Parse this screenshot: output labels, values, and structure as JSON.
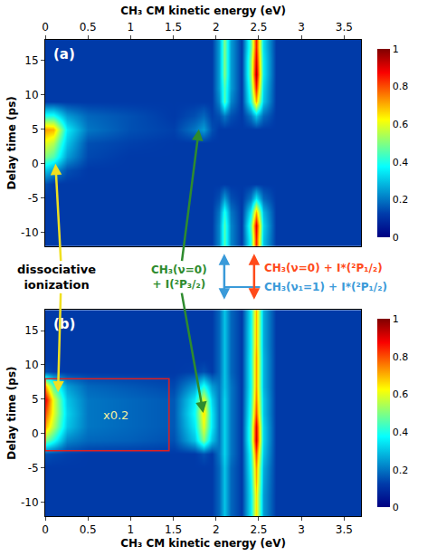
{
  "chart_data": [
    {
      "type": "heatmap",
      "panel": "(a)",
      "xlabel": "CH₃ CM kinetic energy (eV)",
      "ylabel": "Delay time (ps)",
      "xlim": [
        0,
        3.7
      ],
      "xticks": [
        0,
        0.5,
        1,
        1.5,
        2,
        2.5,
        3,
        3.5
      ],
      "ylim": [
        -12,
        18
      ],
      "yticks": [
        -10,
        -5,
        0,
        5,
        10,
        15
      ],
      "colorbar": {
        "range": [
          0,
          1
        ],
        "ticks": [
          0,
          0.2,
          0.4,
          0.6,
          0.8,
          1
        ]
      },
      "x": [
        0,
        0.1,
        0.25,
        0.5,
        1.0,
        1.5,
        1.75,
        1.85,
        1.95,
        2.03,
        2.1,
        2.17,
        2.3,
        2.4,
        2.47,
        2.55,
        2.7,
        3.0,
        3.6
      ],
      "y": [
        -11,
        -9,
        -7,
        -5,
        -3,
        -1,
        1,
        3,
        5,
        7,
        9,
        11,
        13,
        15,
        17
      ],
      "z": [
        [
          0.12,
          0.12,
          0.12,
          0.12,
          0.12,
          0.12,
          0.12,
          0.12,
          0.12,
          0.22,
          0.45,
          0.22,
          0.12,
          0.4,
          0.85,
          0.3,
          0.12,
          0.12,
          0.12
        ],
        [
          0.12,
          0.12,
          0.12,
          0.12,
          0.12,
          0.12,
          0.12,
          0.12,
          0.12,
          0.22,
          0.45,
          0.22,
          0.12,
          0.45,
          0.9,
          0.32,
          0.12,
          0.12,
          0.12
        ],
        [
          0.12,
          0.12,
          0.12,
          0.12,
          0.12,
          0.12,
          0.12,
          0.12,
          0.12,
          0.2,
          0.4,
          0.2,
          0.12,
          0.35,
          0.7,
          0.28,
          0.12,
          0.12,
          0.12
        ],
        [
          0.12,
          0.12,
          0.12,
          0.12,
          0.12,
          0.12,
          0.12,
          0.12,
          0.12,
          0.15,
          0.25,
          0.15,
          0.12,
          0.2,
          0.35,
          0.18,
          0.12,
          0.12,
          0.12
        ],
        [
          0.15,
          0.12,
          0.12,
          0.12,
          0.12,
          0.12,
          0.12,
          0.12,
          0.12,
          0.12,
          0.12,
          0.12,
          0.12,
          0.12,
          0.12,
          0.12,
          0.12,
          0.12,
          0.12
        ],
        [
          0.3,
          0.25,
          0.15,
          0.12,
          0.12,
          0.12,
          0.12,
          0.12,
          0.12,
          0.12,
          0.12,
          0.12,
          0.12,
          0.12,
          0.12,
          0.12,
          0.12,
          0.12,
          0.12
        ],
        [
          0.5,
          0.45,
          0.25,
          0.14,
          0.12,
          0.12,
          0.12,
          0.12,
          0.12,
          0.12,
          0.12,
          0.12,
          0.12,
          0.12,
          0.12,
          0.12,
          0.12,
          0.12,
          0.12
        ],
        [
          0.6,
          0.55,
          0.3,
          0.15,
          0.13,
          0.12,
          0.12,
          0.12,
          0.12,
          0.12,
          0.12,
          0.12,
          0.12,
          0.12,
          0.12,
          0.12,
          0.12,
          0.12,
          0.12
        ],
        [
          0.72,
          0.7,
          0.35,
          0.2,
          0.15,
          0.13,
          0.2,
          0.25,
          0.15,
          0.12,
          0.12,
          0.12,
          0.12,
          0.12,
          0.12,
          0.12,
          0.12,
          0.12,
          0.12
        ],
        [
          0.4,
          0.4,
          0.25,
          0.18,
          0.15,
          0.12,
          0.15,
          0.18,
          0.13,
          0.15,
          0.2,
          0.15,
          0.12,
          0.2,
          0.3,
          0.18,
          0.12,
          0.12,
          0.12
        ],
        [
          0.12,
          0.12,
          0.12,
          0.12,
          0.12,
          0.12,
          0.12,
          0.12,
          0.12,
          0.22,
          0.45,
          0.22,
          0.12,
          0.4,
          0.7,
          0.3,
          0.12,
          0.12,
          0.12
        ],
        [
          0.12,
          0.12,
          0.12,
          0.12,
          0.12,
          0.12,
          0.12,
          0.12,
          0.12,
          0.25,
          0.45,
          0.25,
          0.12,
          0.45,
          0.85,
          0.32,
          0.12,
          0.12,
          0.12
        ],
        [
          0.12,
          0.12,
          0.12,
          0.12,
          0.12,
          0.12,
          0.12,
          0.12,
          0.12,
          0.25,
          0.5,
          0.25,
          0.12,
          0.5,
          0.95,
          0.35,
          0.12,
          0.12,
          0.12
        ],
        [
          0.12,
          0.12,
          0.12,
          0.12,
          0.12,
          0.12,
          0.12,
          0.12,
          0.12,
          0.25,
          0.5,
          0.25,
          0.12,
          0.5,
          0.9,
          0.35,
          0.12,
          0.12,
          0.12
        ],
        [
          0.12,
          0.12,
          0.12,
          0.12,
          0.12,
          0.12,
          0.12,
          0.12,
          0.12,
          0.25,
          0.5,
          0.25,
          0.12,
          0.45,
          0.85,
          0.33,
          0.12,
          0.12,
          0.12
        ]
      ]
    },
    {
      "type": "heatmap",
      "panel": "(b)",
      "xlabel": "CH₃ CM kinetic energy (eV)",
      "ylabel": "Delay time (ps)",
      "xlim": [
        0,
        3.7
      ],
      "xticks": [
        0,
        0.5,
        1,
        1.5,
        2,
        2.5,
        3,
        3.5
      ],
      "ylim": [
        -12,
        18
      ],
      "yticks": [
        -10,
        -5,
        0,
        5,
        10,
        15
      ],
      "colorbar": {
        "range": [
          0,
          1
        ],
        "ticks": [
          0,
          0.2,
          0.4,
          0.6,
          0.8,
          1
        ]
      },
      "box": {
        "text": "x0.2",
        "x": [
          0,
          1.45
        ],
        "y": [
          -2.5,
          8
        ],
        "color": "#e02020"
      },
      "x": [
        0,
        0.1,
        0.25,
        0.5,
        1.0,
        1.5,
        1.75,
        1.85,
        1.95,
        2.03,
        2.1,
        2.17,
        2.3,
        2.4,
        2.47,
        2.55,
        2.7,
        3.0,
        3.6
      ],
      "y": [
        -11,
        -9,
        -7,
        -5,
        -3,
        -1,
        1,
        3,
        5,
        7,
        9,
        11,
        13,
        15,
        17
      ],
      "z": [
        [
          0.12,
          0.12,
          0.12,
          0.12,
          0.12,
          0.12,
          0.12,
          0.12,
          0.12,
          0.18,
          0.3,
          0.18,
          0.12,
          0.35,
          0.65,
          0.25,
          0.12,
          0.12,
          0.12
        ],
        [
          0.12,
          0.12,
          0.12,
          0.12,
          0.12,
          0.12,
          0.12,
          0.12,
          0.12,
          0.18,
          0.3,
          0.18,
          0.12,
          0.35,
          0.65,
          0.25,
          0.12,
          0.12,
          0.12
        ],
        [
          0.12,
          0.12,
          0.12,
          0.12,
          0.12,
          0.12,
          0.12,
          0.12,
          0.12,
          0.18,
          0.3,
          0.18,
          0.12,
          0.36,
          0.7,
          0.26,
          0.12,
          0.12,
          0.12
        ],
        [
          0.12,
          0.12,
          0.12,
          0.12,
          0.12,
          0.12,
          0.12,
          0.12,
          0.12,
          0.18,
          0.3,
          0.18,
          0.12,
          0.38,
          0.72,
          0.27,
          0.12,
          0.12,
          0.12
        ],
        [
          0.15,
          0.14,
          0.13,
          0.12,
          0.12,
          0.12,
          0.12,
          0.15,
          0.12,
          0.2,
          0.32,
          0.2,
          0.12,
          0.4,
          0.8,
          0.3,
          0.12,
          0.12,
          0.12
        ],
        [
          0.5,
          0.4,
          0.22,
          0.18,
          0.17,
          0.15,
          0.3,
          0.5,
          0.3,
          0.2,
          0.32,
          0.2,
          0.12,
          0.45,
          0.92,
          0.32,
          0.12,
          0.12,
          0.12
        ],
        [
          0.7,
          0.55,
          0.3,
          0.2,
          0.18,
          0.16,
          0.35,
          0.6,
          0.35,
          0.2,
          0.32,
          0.2,
          0.12,
          0.45,
          0.9,
          0.32,
          0.12,
          0.12,
          0.12
        ],
        [
          0.8,
          0.6,
          0.32,
          0.2,
          0.18,
          0.16,
          0.38,
          0.65,
          0.35,
          0.2,
          0.32,
          0.2,
          0.12,
          0.42,
          0.8,
          0.3,
          0.12,
          0.12,
          0.12
        ],
        [
          0.9,
          0.6,
          0.3,
          0.2,
          0.18,
          0.16,
          0.35,
          0.6,
          0.32,
          0.2,
          0.32,
          0.2,
          0.12,
          0.4,
          0.75,
          0.3,
          0.12,
          0.12,
          0.12
        ],
        [
          0.7,
          0.45,
          0.25,
          0.18,
          0.16,
          0.14,
          0.25,
          0.4,
          0.25,
          0.2,
          0.3,
          0.2,
          0.12,
          0.38,
          0.72,
          0.28,
          0.12,
          0.12,
          0.12
        ],
        [
          0.15,
          0.13,
          0.12,
          0.12,
          0.12,
          0.12,
          0.13,
          0.15,
          0.12,
          0.18,
          0.3,
          0.18,
          0.12,
          0.38,
          0.72,
          0.28,
          0.12,
          0.12,
          0.12
        ],
        [
          0.12,
          0.12,
          0.12,
          0.12,
          0.12,
          0.12,
          0.12,
          0.12,
          0.12,
          0.18,
          0.3,
          0.18,
          0.12,
          0.38,
          0.72,
          0.28,
          0.12,
          0.12,
          0.12
        ],
        [
          0.12,
          0.12,
          0.12,
          0.12,
          0.12,
          0.12,
          0.12,
          0.12,
          0.12,
          0.18,
          0.3,
          0.18,
          0.12,
          0.37,
          0.7,
          0.27,
          0.12,
          0.12,
          0.12
        ],
        [
          0.12,
          0.12,
          0.12,
          0.12,
          0.12,
          0.12,
          0.12,
          0.12,
          0.12,
          0.18,
          0.3,
          0.18,
          0.12,
          0.37,
          0.7,
          0.27,
          0.12,
          0.12,
          0.12
        ],
        [
          0.12,
          0.12,
          0.12,
          0.12,
          0.12,
          0.12,
          0.12,
          0.12,
          0.12,
          0.18,
          0.3,
          0.18,
          0.12,
          0.36,
          0.7,
          0.27,
          0.12,
          0.12,
          0.12
        ]
      ]
    }
  ],
  "annotations": [
    {
      "text": "dissociative ionization",
      "color": "#000000",
      "arrow_color": "#f0e020"
    },
    {
      "text": "CH₃(ν=0) + I(²P₃/₂)",
      "color": "#2e8b2e",
      "arrow_color": "#2e8b2e"
    },
    {
      "text": "CH₃(ν=0) + I*(²P₁/₂)",
      "color": "#ff4a1a",
      "arrow_color": "#ff4a1a"
    },
    {
      "text": "CH₃(ν₁=1) + I*(²P₁/₂)",
      "color": "#3a9ad9",
      "arrow_color": "#3a9ad9"
    }
  ]
}
